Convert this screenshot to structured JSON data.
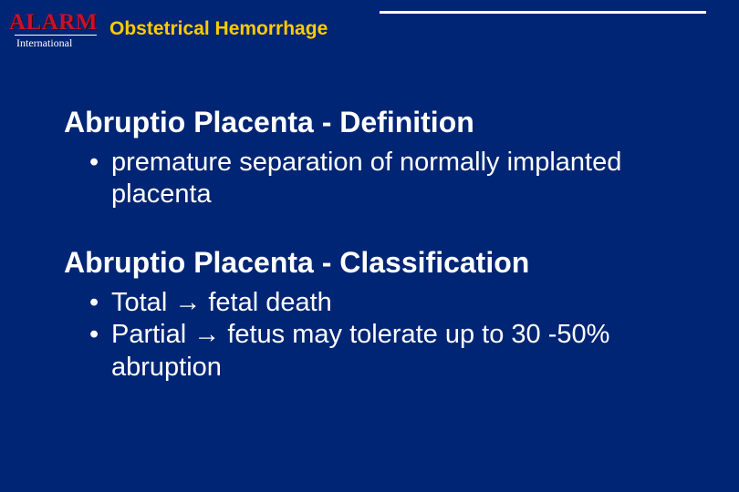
{
  "logo": {
    "brand": "ALARM",
    "subtext": "International"
  },
  "header": {
    "title": "Obstetrical Hemorrhage"
  },
  "colors": {
    "background": "#002574",
    "title": "#ffcc00",
    "text": "#ffffff",
    "logo_red": "#c8102e"
  },
  "sections": [
    {
      "heading": "Abruptio Placenta - Definition",
      "bullets": [
        "premature separation of normally implanted placenta"
      ]
    },
    {
      "heading": "Abruptio Placenta - Classification",
      "bullets": [
        "Total → fetal death",
        "Partial → fetus may tolerate up to 30 -50% abruption"
      ]
    }
  ],
  "typography": {
    "heading_fontsize": 32,
    "bullet_fontsize": 29,
    "title_fontsize": 21,
    "font_family": "Arial"
  }
}
